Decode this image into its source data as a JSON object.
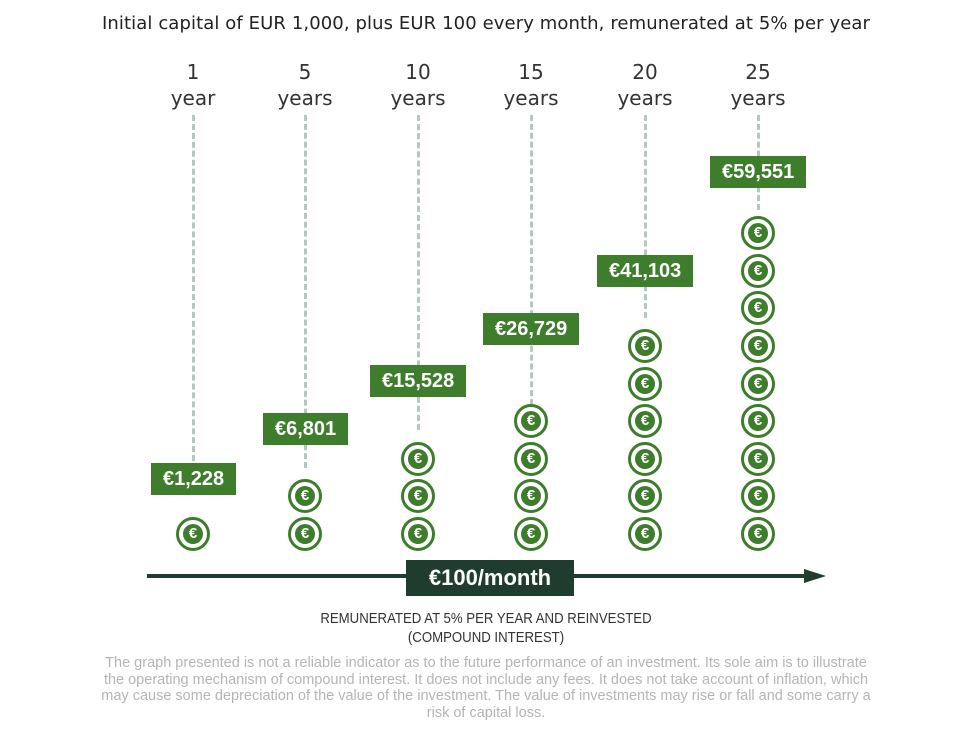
{
  "title": "Initial capital of EUR 1,000, plus EUR 100 every month, remunerated at 5% per year",
  "coin_symbol": "€",
  "arrow_label": "€100/month",
  "caption_line1": "REMUNERATED AT 5% PER YEAR AND REINVESTED",
  "caption_line2": "(COMPOUND INTEREST)",
  "disclaimer": "The graph presented is not a reliable indicator as to the future performance of an investment. Its sole aim is to illustrate the operating mechanism of compound interest. It does not include any fees. It does not take account of inflation, which may cause some depreciation of the value of the investment. The value of investments may rise or fall and some carry a risk of capital loss.",
  "colors": {
    "value_box": "#3d7d2c",
    "coin": "#3d7d2c",
    "arrow": "#1e3d2e",
    "dash": "#b6c6c0"
  },
  "chart_data": {
    "type": "bar",
    "title": "Initial capital of EUR 1,000, plus EUR 100 every month, remunerated at 5% per year",
    "categories": [
      "1 year",
      "5 years",
      "10 years",
      "15 years",
      "20 years",
      "25 years"
    ],
    "category_labels": [
      {
        "num": "1",
        "unit": "year"
      },
      {
        "num": "5",
        "unit": "years"
      },
      {
        "num": "10",
        "unit": "years"
      },
      {
        "num": "15",
        "unit": "years"
      },
      {
        "num": "20",
        "unit": "years"
      },
      {
        "num": "25",
        "unit": "years"
      }
    ],
    "values": [
      1228,
      6801,
      15528,
      26729,
      41103,
      59551
    ],
    "value_labels": [
      "€1,228",
      "€6,801",
      "€15,528",
      "€26,729",
      "€41,103",
      "€59,551"
    ],
    "coin_counts": [
      1,
      2,
      3,
      4,
      6,
      9
    ]
  }
}
